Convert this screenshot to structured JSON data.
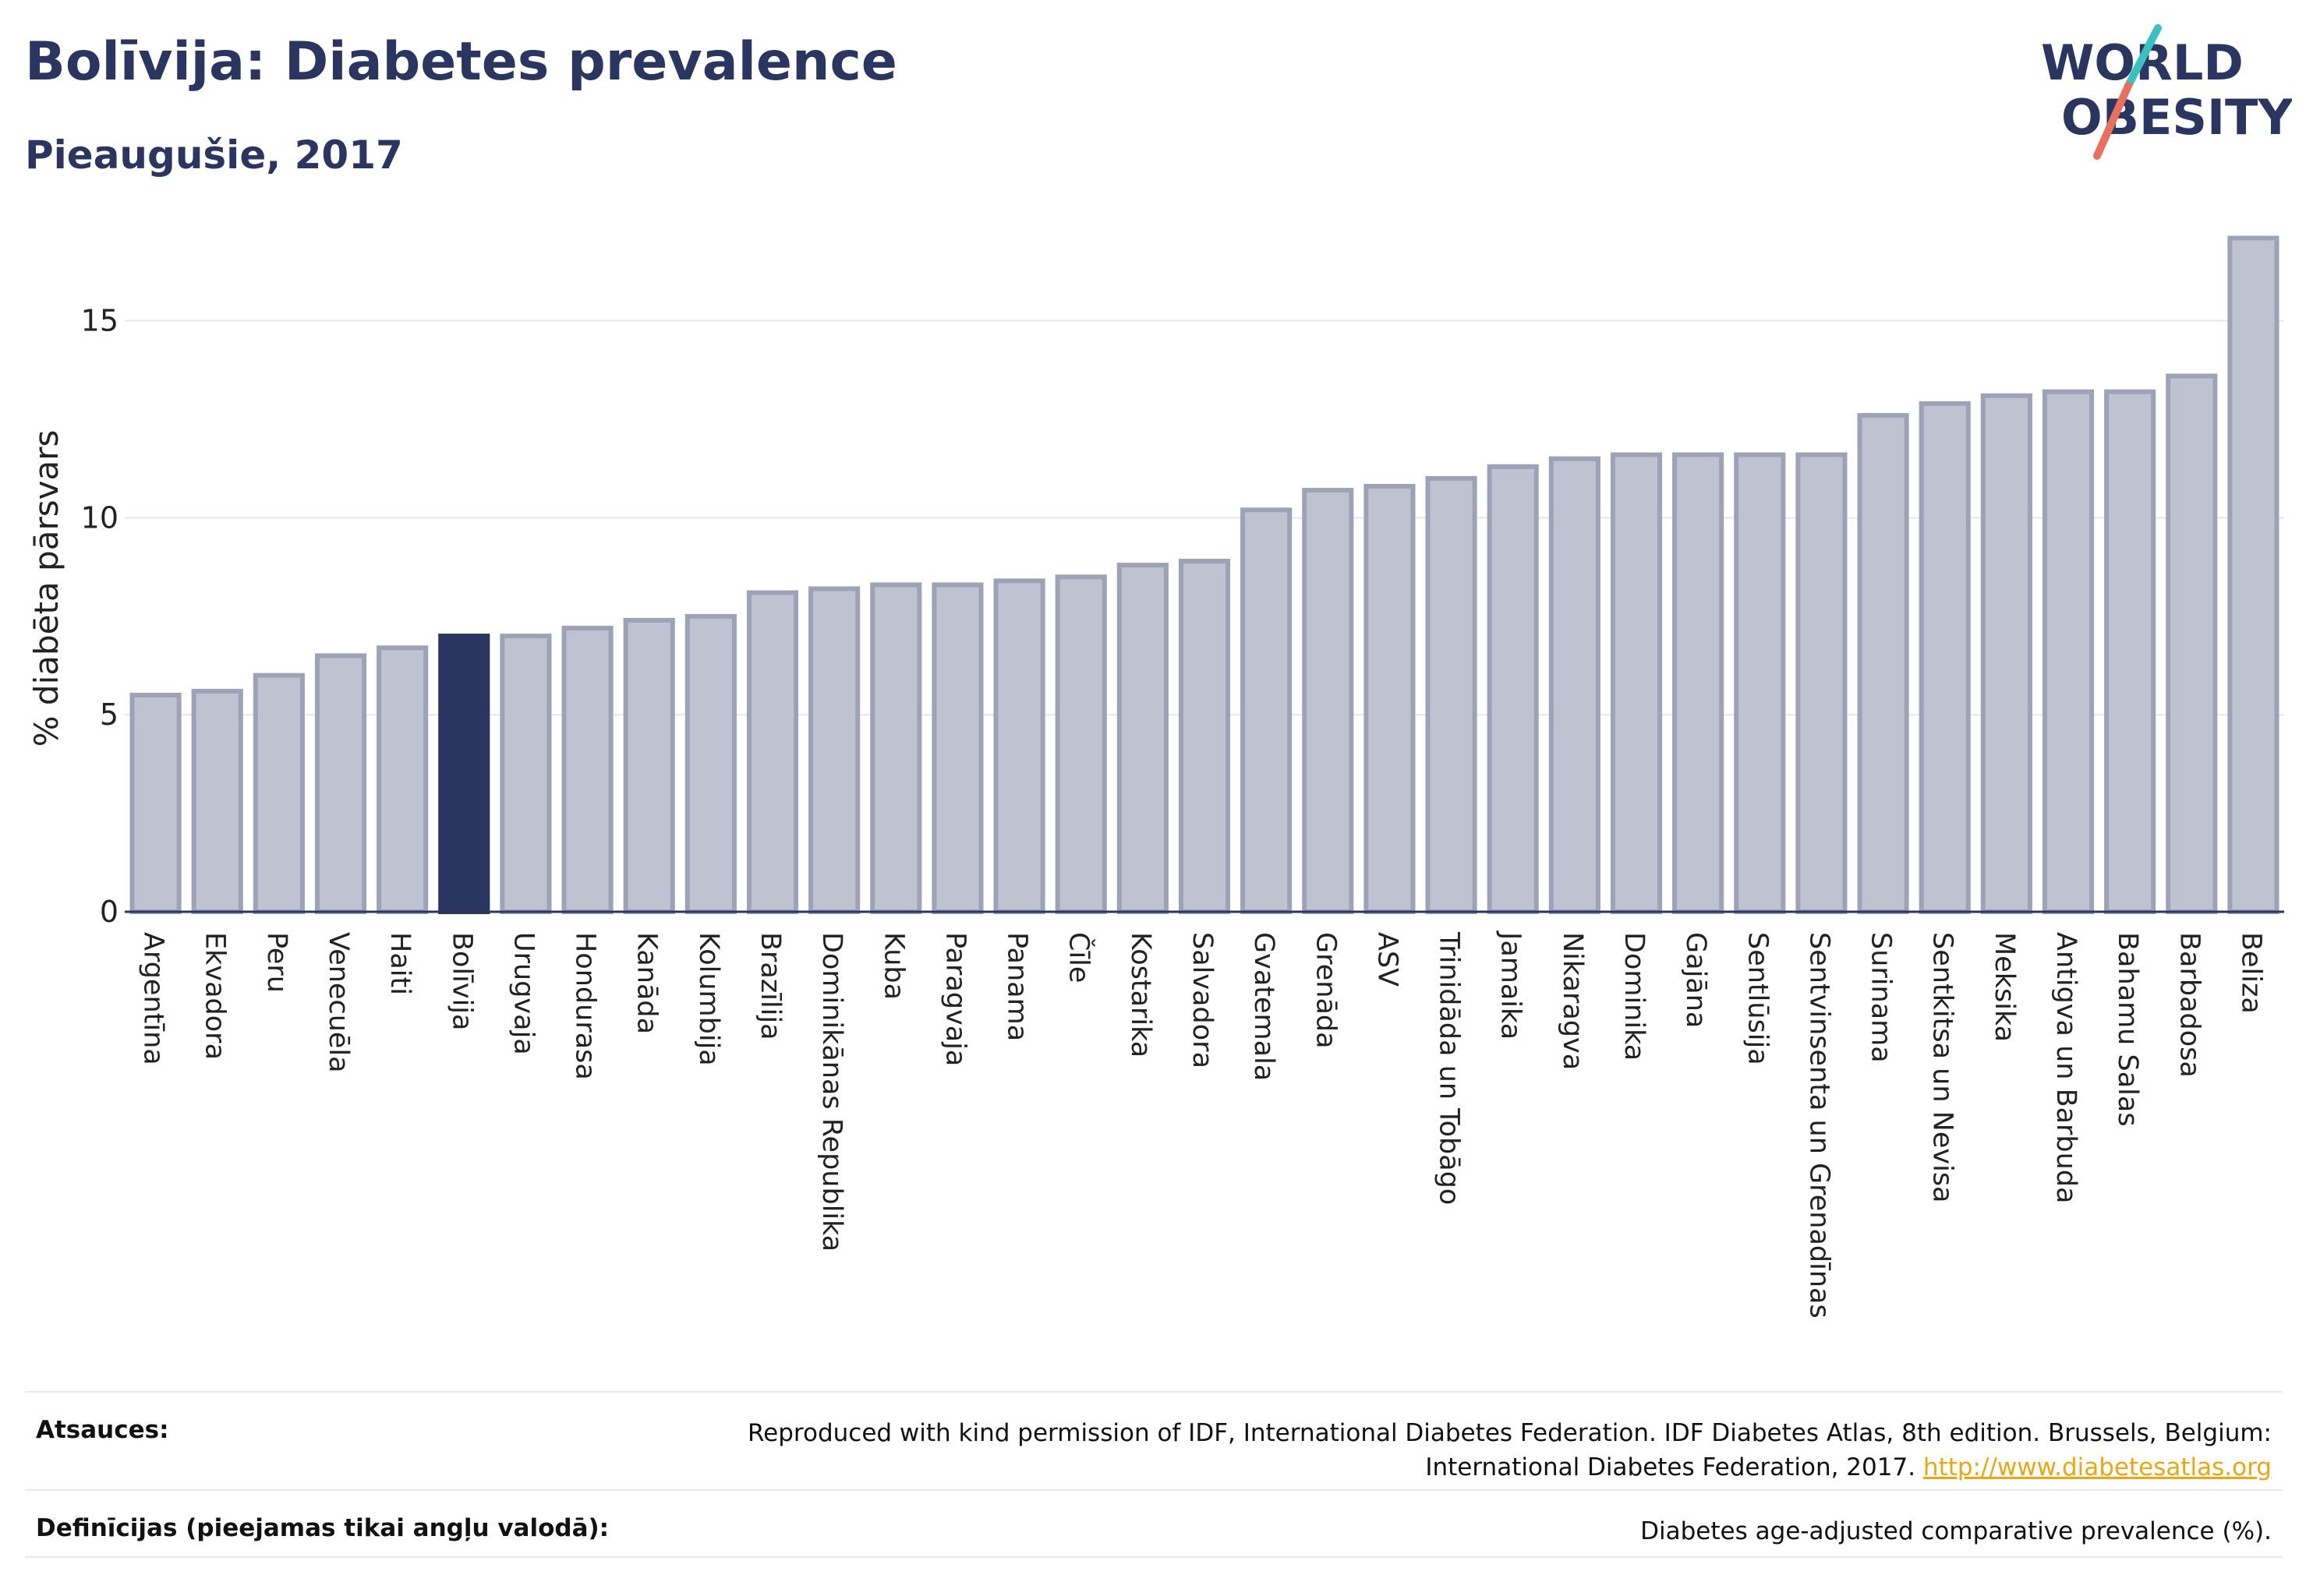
{
  "header": {
    "title": "Bolīvija: Diabetes prevalence",
    "subtitle": "Pieaugušie, 2017"
  },
  "logo": {
    "line1": "WORLD",
    "line2": "OBESITY",
    "slash_colors": [
      "#e8705f",
      "#3bbfbf"
    ]
  },
  "footer": {
    "sources_label": "Atsauces:",
    "sources_text": "Reproduced with kind permission of IDF, International Diabetes Federation. IDF Diabetes Atlas, 8th edition. Brussels, Belgium:",
    "sources_text2": "International Diabetes Federation, 2017.",
    "sources_link": "http://www.diabetesatlas.org",
    "definitions_label": "Definīcijas (pieejamas tikai angļu valodā):",
    "definitions_text": "Diabetes age-adjusted comparative prevalence (%)."
  },
  "chart_data": {
    "type": "bar",
    "ylabel": "% diabēta pārsvars",
    "ylim": [
      0,
      18
    ],
    "yticks": [
      0,
      5,
      10,
      15
    ],
    "grid": true,
    "highlight": "Bolīvija",
    "colors": {
      "bar": "#bfc2d0",
      "bar_border": "#9da2b7",
      "highlight": "#2a3560"
    },
    "categories": [
      "Argentīna",
      "Ekvadora",
      "Peru",
      "Venecuēla",
      "Haiti",
      "Bolīvija",
      "Urugvaja",
      "Hondurasa",
      "Kanāda",
      "Kolumbija",
      "Brazīlija",
      "Dominikānas Republika",
      "Kuba",
      "Paragvaja",
      "Panama",
      "Čīle",
      "Kostarika",
      "Salvadora",
      "Gvatemala",
      "Grenāda",
      "ASV",
      "Trinidāda un Tobāgo",
      "Jamaika",
      "Nikaragva",
      "Dominika",
      "Gajāna",
      "Sentlūsija",
      "Sentvinsenta un Grenadīnas",
      "Surinama",
      "Sentkitsa un Nevisa",
      "Meksika",
      "Antigva un Barbuda",
      "Bahamu Salas",
      "Barbadosa",
      "Beliza"
    ],
    "values": [
      5.5,
      5.6,
      6.0,
      6.5,
      6.7,
      7.0,
      7.0,
      7.2,
      7.4,
      7.5,
      8.1,
      8.2,
      8.3,
      8.3,
      8.4,
      8.5,
      8.8,
      8.9,
      10.2,
      10.7,
      10.8,
      11.0,
      11.3,
      11.5,
      11.6,
      11.6,
      11.6,
      11.6,
      12.6,
      12.9,
      13.1,
      13.2,
      13.2,
      13.6,
      17.1
    ]
  }
}
